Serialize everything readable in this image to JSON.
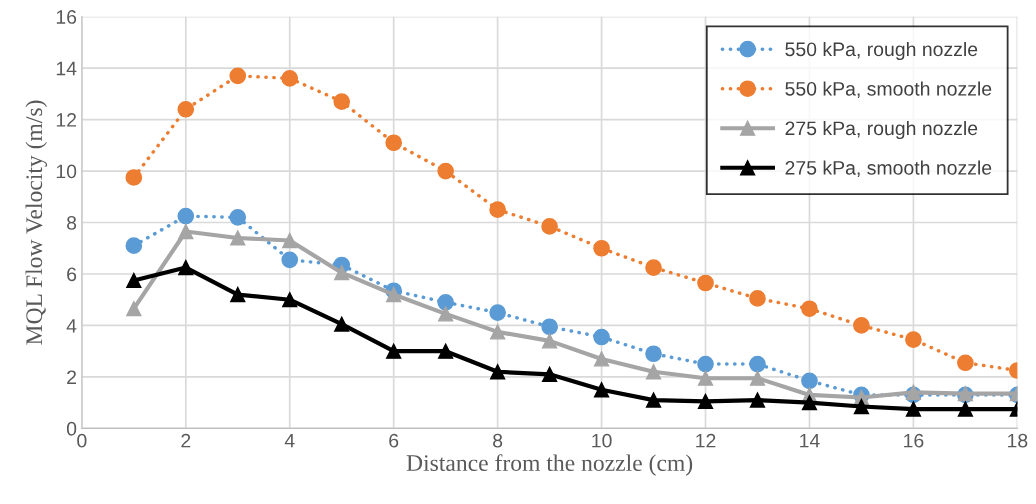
{
  "chart_data": {
    "type": "line",
    "xlabel": "Distance from the nozzle (cm)",
    "ylabel": "MQL Flow Velocity (m/s)",
    "x": [
      1,
      2,
      3,
      4,
      5,
      6,
      7,
      8,
      9,
      10,
      11,
      12,
      13,
      14,
      15,
      16,
      17,
      18
    ],
    "xlim": [
      0,
      18
    ],
    "xticks": [
      0,
      2,
      4,
      6,
      8,
      10,
      12,
      14,
      16,
      18
    ],
    "ylim": [
      0,
      16
    ],
    "yticks": [
      0,
      2,
      4,
      6,
      8,
      10,
      12,
      14,
      16
    ],
    "grid": true,
    "legend": "top right",
    "series": [
      {
        "name": "550 kPa, rough nozzle",
        "color": "#5b9bd5",
        "marker": "circle",
        "line_style": "dotted",
        "values": [
          7.1,
          8.25,
          8.2,
          6.55,
          6.35,
          5.35,
          4.9,
          4.5,
          3.95,
          3.55,
          2.9,
          2.5,
          2.5,
          1.85,
          1.3,
          1.3,
          1.3,
          1.3
        ]
      },
      {
        "name": "550 kPa, smooth nozzle",
        "color": "#ed7d31",
        "marker": "circle",
        "line_style": "dotted",
        "values": [
          9.75,
          12.4,
          13.7,
          13.6,
          12.7,
          11.1,
          10.0,
          8.5,
          7.85,
          7.0,
          6.25,
          5.65,
          5.05,
          4.65,
          4.0,
          3.45,
          2.55,
          2.25
        ]
      },
      {
        "name": "275 kPa, rough nozzle",
        "color": "#a5a5a5",
        "marker": "triangle",
        "line_style": "solid",
        "values": [
          4.65,
          7.65,
          7.4,
          7.3,
          6.05,
          5.2,
          4.45,
          3.75,
          3.4,
          2.7,
          2.2,
          1.95,
          1.95,
          1.3,
          1.2,
          1.4,
          1.35,
          1.35
        ]
      },
      {
        "name": "275 kPa, smooth nozzle",
        "color": "#000000",
        "marker": "triangle",
        "line_style": "solid",
        "values": [
          5.75,
          6.25,
          5.2,
          5.0,
          4.05,
          3.0,
          3.0,
          2.2,
          2.1,
          1.5,
          1.1,
          1.05,
          1.1,
          1.0,
          0.85,
          0.75,
          0.75,
          0.75
        ]
      }
    ]
  }
}
